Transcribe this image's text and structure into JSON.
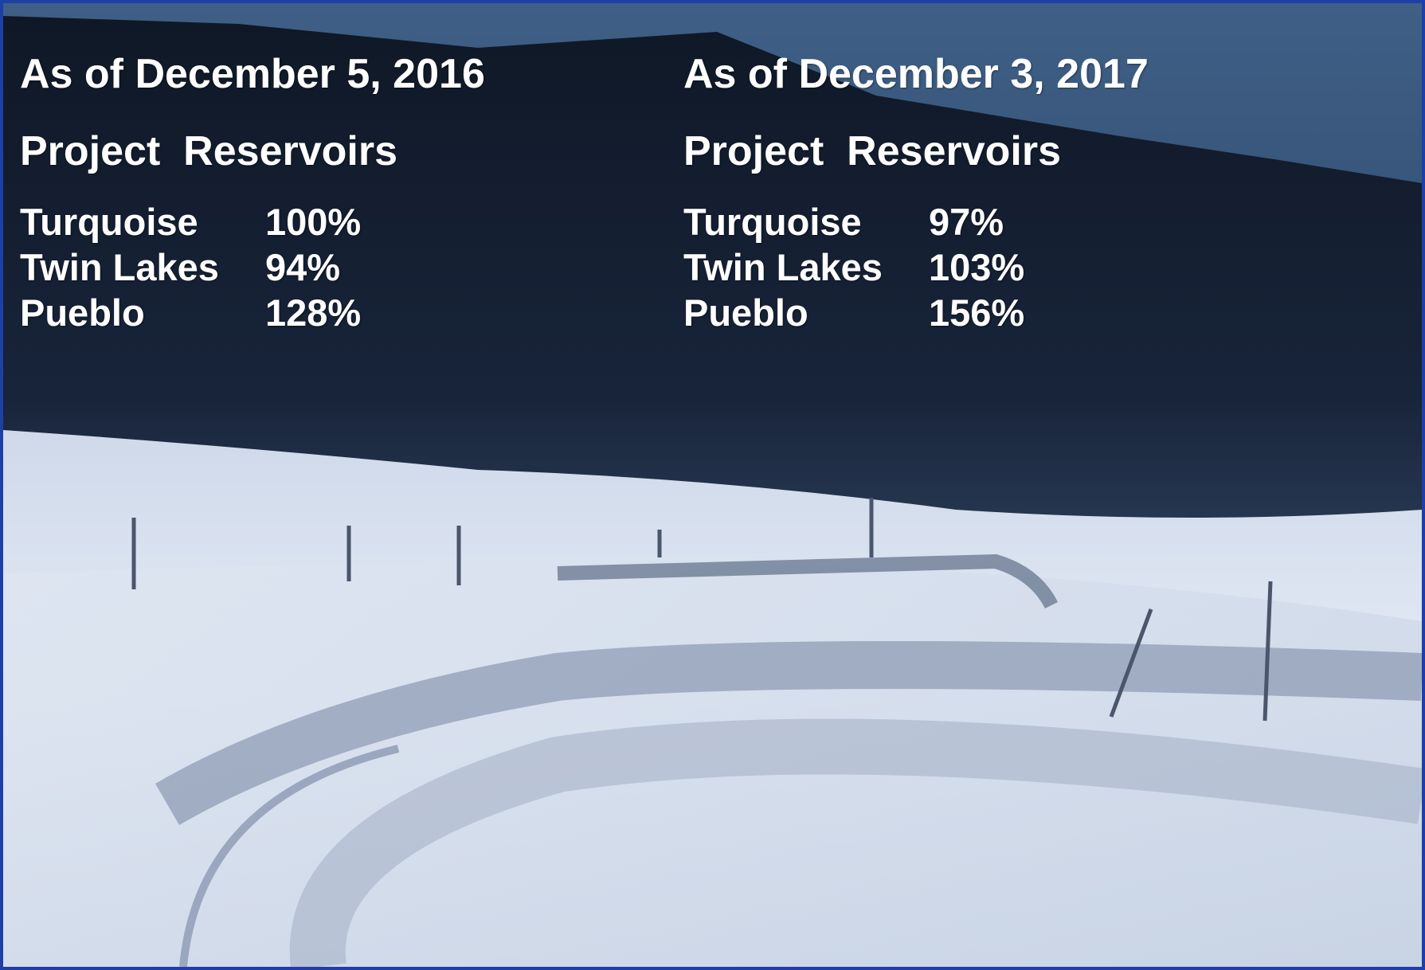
{
  "columns": [
    {
      "date": "As of December 5, 2016",
      "heading": "Project  Reservoirs",
      "rows": [
        [
          "Turquoise",
          "100%"
        ],
        [
          "Twin Lakes",
          "94%"
        ],
        [
          "Pueblo",
          "128%"
        ]
      ]
    },
    {
      "date": "As of December 3, 2017",
      "heading": "Project  Reservoirs",
      "rows": [
        [
          "Turquoise",
          "97%"
        ],
        [
          "Twin Lakes",
          "103%"
        ],
        [
          "Pueblo",
          "156%"
        ]
      ]
    }
  ]
}
